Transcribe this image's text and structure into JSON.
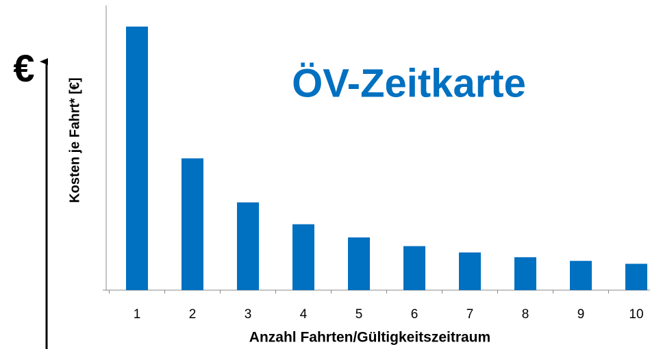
{
  "chart_data": {
    "type": "bar",
    "title": "ÖV-Zeitkarte",
    "x_label": "Anzahl Fahrten/Gültigkeitszeitraum",
    "y_label": "Kosten je Fahrt* [€]",
    "annotations": [
      "€"
    ],
    "categories": [
      "1",
      "2",
      "3",
      "4",
      "5",
      "6",
      "7",
      "8",
      "9",
      "10"
    ],
    "values": [
      100,
      50,
      33.3,
      25,
      20,
      16.7,
      14.3,
      12.5,
      11.1,
      10
    ],
    "color": "#0070c0",
    "ylim": [
      0,
      108
    ],
    "grid": false
  }
}
